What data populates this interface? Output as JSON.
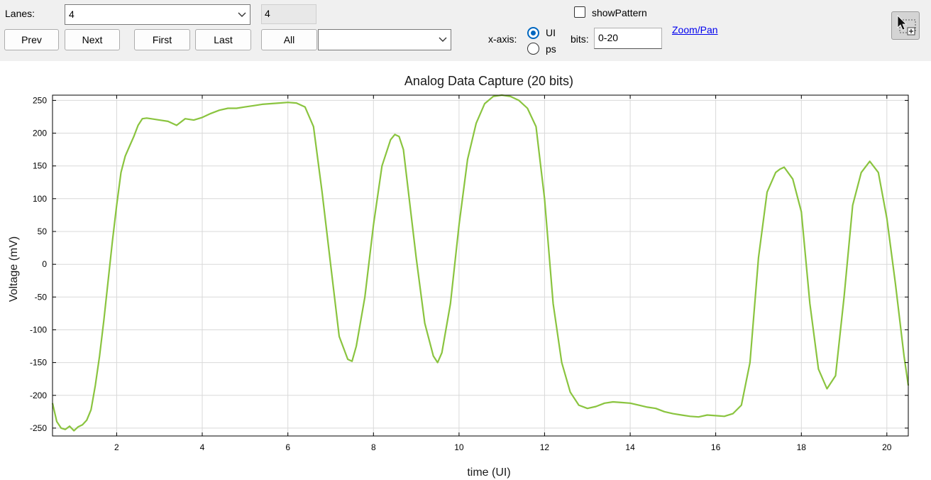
{
  "toolbar": {
    "lanes_label": "Lanes:",
    "lanes_value": "4",
    "lane_readout": "4",
    "prev_label": "Prev",
    "next_label": "Next",
    "first_label": "First",
    "last_label": "Last",
    "all_label": "All",
    "all_select_value": "",
    "xaxis_label": "x-axis:",
    "xaxis_options": [
      "UI",
      "ps"
    ],
    "xaxis_selected": "UI",
    "show_pattern_label": "showPattern",
    "show_pattern_checked": false,
    "bits_label": "bits:",
    "bits_value": "0-20",
    "zoom_link": "Zoom/Pan",
    "tool_icon": "select-zoom-icon"
  },
  "chart_data": {
    "type": "line",
    "title": "Analog Data Capture (20 bits)",
    "xlabel": "time (UI)",
    "ylabel": "Voltage (mV)",
    "xlim": [
      0.5,
      20.5
    ],
    "ylim": [
      -262,
      258
    ],
    "xticks": [
      2,
      4,
      6,
      8,
      10,
      12,
      14,
      16,
      18,
      20
    ],
    "yticks": [
      250,
      200,
      150,
      100,
      50,
      0,
      -50,
      -100,
      -150,
      -200,
      -250
    ],
    "grid": true,
    "color": "#8ac43f",
    "series": [
      {
        "x": [
          0.5,
          0.6,
          0.7,
          0.8,
          0.9,
          1.0,
          1.1,
          1.2,
          1.3,
          1.4,
          1.5,
          1.6,
          1.7,
          1.8,
          1.9,
          2.0,
          2.1,
          2.2,
          2.3,
          2.4,
          2.5,
          2.6,
          2.7,
          2.8,
          3.0,
          3.2,
          3.4,
          3.6,
          3.8,
          4.0,
          4.2,
          4.4,
          4.6,
          4.8,
          5.0,
          5.2,
          5.4,
          5.6,
          5.8,
          6.0,
          6.2,
          6.4,
          6.6,
          6.8,
          7.0,
          7.2,
          7.4,
          7.5,
          7.6,
          7.8,
          8.0,
          8.2,
          8.4,
          8.5,
          8.6,
          8.7,
          8.8,
          9.0,
          9.2,
          9.4,
          9.5,
          9.6,
          9.8,
          10.0,
          10.2,
          10.4,
          10.6,
          10.8,
          11.0,
          11.2,
          11.4,
          11.6,
          11.8,
          12.0,
          12.2,
          12.4,
          12.6,
          12.8,
          13.0,
          13.2,
          13.4,
          13.6,
          13.8,
          14.0,
          14.2,
          14.4,
          14.6,
          14.8,
          15.0,
          15.2,
          15.4,
          15.6,
          15.8,
          16.0,
          16.2,
          16.4,
          16.6,
          16.8,
          17.0,
          17.2,
          17.4,
          17.5,
          17.6,
          17.8,
          18.0,
          18.2,
          18.4,
          18.6,
          18.8,
          19.0,
          19.2,
          19.4,
          19.6,
          19.8,
          20.0,
          20.2,
          20.4,
          20.5
        ],
        "y": [
          -212,
          -240,
          -250,
          -252,
          -247,
          -254,
          -248,
          -245,
          -238,
          -222,
          -185,
          -140,
          -85,
          -25,
          35,
          90,
          140,
          165,
          180,
          195,
          212,
          222,
          223,
          222,
          220,
          218,
          212,
          222,
          220,
          224,
          230,
          235,
          238,
          238,
          240,
          242,
          244,
          245,
          246,
          247,
          246,
          240,
          210,
          110,
          0,
          -110,
          -145,
          -148,
          -125,
          -50,
          60,
          150,
          190,
          198,
          195,
          175,
          120,
          10,
          -90,
          -140,
          -150,
          -135,
          -60,
          60,
          160,
          215,
          245,
          256,
          258,
          256,
          250,
          238,
          210,
          100,
          -60,
          -150,
          -195,
          -215,
          -220,
          -217,
          -212,
          -210,
          -211,
          -212,
          -215,
          -218,
          -220,
          -225,
          -228,
          -230,
          -232,
          -233,
          -230,
          -231,
          -232,
          -228,
          -215,
          -150,
          10,
          110,
          140,
          145,
          148,
          130,
          80,
          -60,
          -160,
          -190,
          -170,
          -50,
          90,
          140,
          157,
          140,
          70,
          -30,
          -140,
          -185
        ]
      }
    ]
  }
}
